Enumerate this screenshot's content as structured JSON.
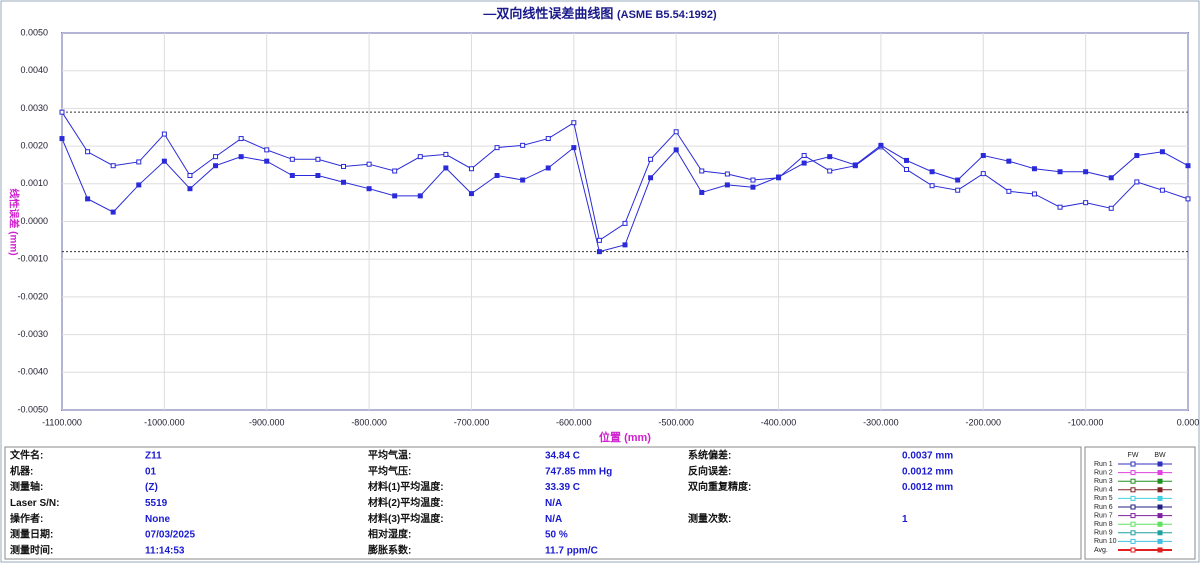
{
  "chart_data": {
    "type": "line",
    "title": "—双向线性误差曲线图",
    "subtitle": "(ASME B5.54:1992)",
    "x_label": "位置 (mm)",
    "y_label": "线性误差 (mm)",
    "x": [
      -1100,
      -1075,
      -1050,
      -1025,
      -1000,
      -975,
      -950,
      -925,
      -900,
      -875,
      -850,
      -825,
      -800,
      -775,
      -750,
      -725,
      -700,
      -675,
      -650,
      -625,
      -600,
      -575,
      -550,
      -525,
      -500,
      -475,
      -450,
      -425,
      -400,
      -375,
      -350,
      -325,
      -300,
      -275,
      -250,
      -225,
      -200,
      -175,
      -150,
      -125,
      -100,
      -75,
      -50,
      -25,
      0
    ],
    "series": [
      {
        "name": "FW",
        "color": "#2a2ad8",
        "marker": "open",
        "values": [
          0.0029,
          0.00185,
          0.00148,
          0.00158,
          0.00232,
          0.00122,
          0.00172,
          0.0022,
          0.0019,
          0.00165,
          0.00165,
          0.00146,
          0.00152,
          0.00134,
          0.00172,
          0.00178,
          0.0014,
          0.00196,
          0.00202,
          0.0022,
          0.00262,
          -0.0005,
          -5e-05,
          0.00165,
          0.00238,
          0.00134,
          0.00126,
          0.0011,
          0.00116,
          0.00175,
          0.00134,
          0.00148,
          0.00198,
          0.00138,
          0.00095,
          0.00083,
          0.00127,
          0.0008,
          0.00073,
          0.00038,
          0.0005,
          0.00035,
          0.00105,
          0.00083,
          0.0006
        ]
      },
      {
        "name": "BW",
        "color": "#2a2ad8",
        "marker": "filled",
        "values": [
          0.0022,
          0.0006,
          0.00025,
          0.00097,
          0.0016,
          0.00087,
          0.00148,
          0.00172,
          0.0016,
          0.00122,
          0.00122,
          0.00104,
          0.00087,
          0.00068,
          0.00068,
          0.00142,
          0.00074,
          0.00122,
          0.0011,
          0.00142,
          0.00196,
          -0.0008,
          -0.00062,
          0.00116,
          0.0019,
          0.00077,
          0.00097,
          0.00091,
          0.00118,
          0.00155,
          0.00172,
          0.0015,
          0.00202,
          0.00162,
          0.00132,
          0.0011,
          0.00175,
          0.0016,
          0.0014,
          0.00132,
          0.00132,
          0.00116,
          0.00175,
          0.00185,
          0.00148
        ]
      }
    ],
    "limit_lines": [
      0.0029,
      -0.0008
    ],
    "xlim": [
      -1100,
      0
    ],
    "ylim": [
      -0.005,
      0.005
    ],
    "grid": true,
    "xticks": [
      {
        "value": -1100,
        "label": "-1100.000"
      },
      {
        "value": -1000,
        "label": "-1000.000"
      },
      {
        "value": -900,
        "label": "-900.000"
      },
      {
        "value": -800,
        "label": "-800.000"
      },
      {
        "value": -700,
        "label": "-700.000"
      },
      {
        "value": -600,
        "label": "-600.000"
      },
      {
        "value": -500,
        "label": "-500.000"
      },
      {
        "value": -400,
        "label": "-400.000"
      },
      {
        "value": -300,
        "label": "-300.000"
      },
      {
        "value": -200,
        "label": "-200.000"
      },
      {
        "value": -100,
        "label": "-100.000"
      },
      {
        "value": 0,
        "label": "0.000"
      }
    ],
    "yticks": [
      {
        "value": 0.005,
        "label": "0.0050"
      },
      {
        "value": 0.004,
        "label": "0.0040"
      },
      {
        "value": 0.003,
        "label": "0.0030"
      },
      {
        "value": 0.002,
        "label": "0.0020"
      },
      {
        "value": 0.001,
        "label": "0.0010"
      },
      {
        "value": 0,
        "label": "0.0000"
      },
      {
        "value": -0.001,
        "label": "-0.0010"
      },
      {
        "value": -0.002,
        "label": "-0.0020"
      },
      {
        "value": -0.003,
        "label": "-0.0030"
      },
      {
        "value": -0.004,
        "label": "-0.0040"
      },
      {
        "value": -0.005,
        "label": "-0.0050"
      }
    ]
  },
  "info": {
    "rows": [
      [
        [
          "文件名:",
          "Z11"
        ],
        [
          "平均气温:",
          "34.84 C"
        ],
        [
          "系统偏差:",
          "0.0037 mm"
        ]
      ],
      [
        [
          "机器:",
          "01"
        ],
        [
          "平均气压:",
          "747.85 mm Hg"
        ],
        [
          "反向误差:",
          "0.0012 mm"
        ]
      ],
      [
        [
          "测量轴:",
          "(Z)"
        ],
        [
          "材料(1)平均温度:",
          "33.39 C"
        ],
        [
          "双向重复精度:",
          "0.0012 mm"
        ]
      ],
      [
        [
          "Laser S/N:",
          "5519"
        ],
        [
          "材料(2)平均温度:",
          "N/A"
        ],
        null
      ],
      [
        [
          "操作者:",
          "None"
        ],
        [
          "材料(3)平均温度:",
          "N/A"
        ],
        [
          "测量次数:",
          "1"
        ]
      ],
      [
        [
          "测量日期:",
          "07/03/2025"
        ],
        [
          "相对湿度:",
          "50 %"
        ],
        null
      ],
      [
        [
          "测量时间:",
          "11:14:53"
        ],
        [
          "膨胀系数:",
          "11.7 ppm/C"
        ],
        null
      ]
    ]
  },
  "legend_runs": [
    {
      "name": "Run 1",
      "color": "#3030c0"
    },
    {
      "name": "Run 2",
      "color": "#e040e0"
    },
    {
      "name": "Run 3",
      "color": "#209020"
    },
    {
      "name": "Run 4",
      "color": "#802020"
    },
    {
      "name": "Run 5",
      "color": "#40d0e0"
    },
    {
      "name": "Run 6",
      "color": "#202080"
    },
    {
      "name": "Run 7",
      "color": "#8020a0"
    },
    {
      "name": "Run 8",
      "color": "#60e060"
    },
    {
      "name": "Run 9",
      "color": "#20a0a0"
    },
    {
      "name": "Run 10",
      "color": "#40c0e0"
    },
    {
      "name": "Avg.",
      "color": "#e02020"
    }
  ]
}
